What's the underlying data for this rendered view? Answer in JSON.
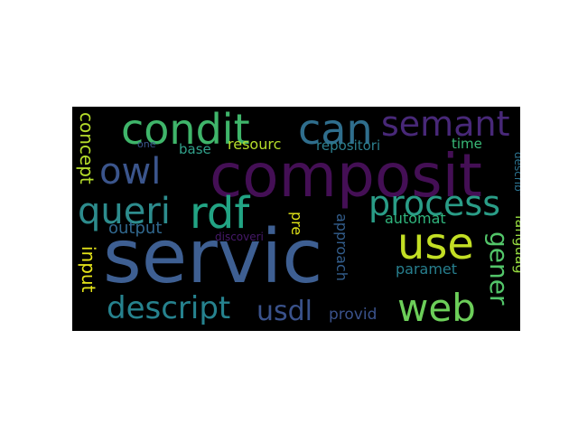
{
  "word_cloud": {
    "words": [
      {
        "text": "servic",
        "color": "#3e5f92"
      },
      {
        "text": "composit",
        "color": "#440f55"
      },
      {
        "text": "condit",
        "color": "#3fb56a"
      },
      {
        "text": "can",
        "color": "#2f6e8d"
      },
      {
        "text": "semant",
        "color": "#482878"
      },
      {
        "text": "owl",
        "color": "#3b558c"
      },
      {
        "text": "rdf",
        "color": "#22a484"
      },
      {
        "text": "queri",
        "color": "#2d8c8d"
      },
      {
        "text": "process",
        "color": "#2a9d87"
      },
      {
        "text": "use",
        "color": "#c3df24"
      },
      {
        "text": "web",
        "color": "#6cce59"
      },
      {
        "text": "descript",
        "color": "#26828e"
      },
      {
        "text": "usdl",
        "color": "#3a528b"
      },
      {
        "text": "gener",
        "color": "#52c569"
      },
      {
        "text": "concept",
        "color": "#b5dd2b"
      },
      {
        "text": "input",
        "color": "#e5e419"
      },
      {
        "text": "output",
        "color": "#31688e"
      },
      {
        "text": "base",
        "color": "#31a08a"
      },
      {
        "text": "resourc",
        "color": "#b5dd2b"
      },
      {
        "text": "repositori",
        "color": "#2c7f8e"
      },
      {
        "text": "time",
        "color": "#38b977"
      },
      {
        "text": "one",
        "color": "#3a558c"
      },
      {
        "text": "pre",
        "color": "#e2e418"
      },
      {
        "text": "approach",
        "color": "#335e8d"
      },
      {
        "text": "automat",
        "color": "#2fb47c"
      },
      {
        "text": "paramet",
        "color": "#277f8e"
      },
      {
        "text": "languag",
        "color": "#94d840"
      },
      {
        "text": "describ\"",
        "color": "#2c728e"
      },
      {
        "text": "provid",
        "color": "#3a528b"
      },
      {
        "text": "discoveri",
        "color": "#47196b"
      }
    ]
  }
}
